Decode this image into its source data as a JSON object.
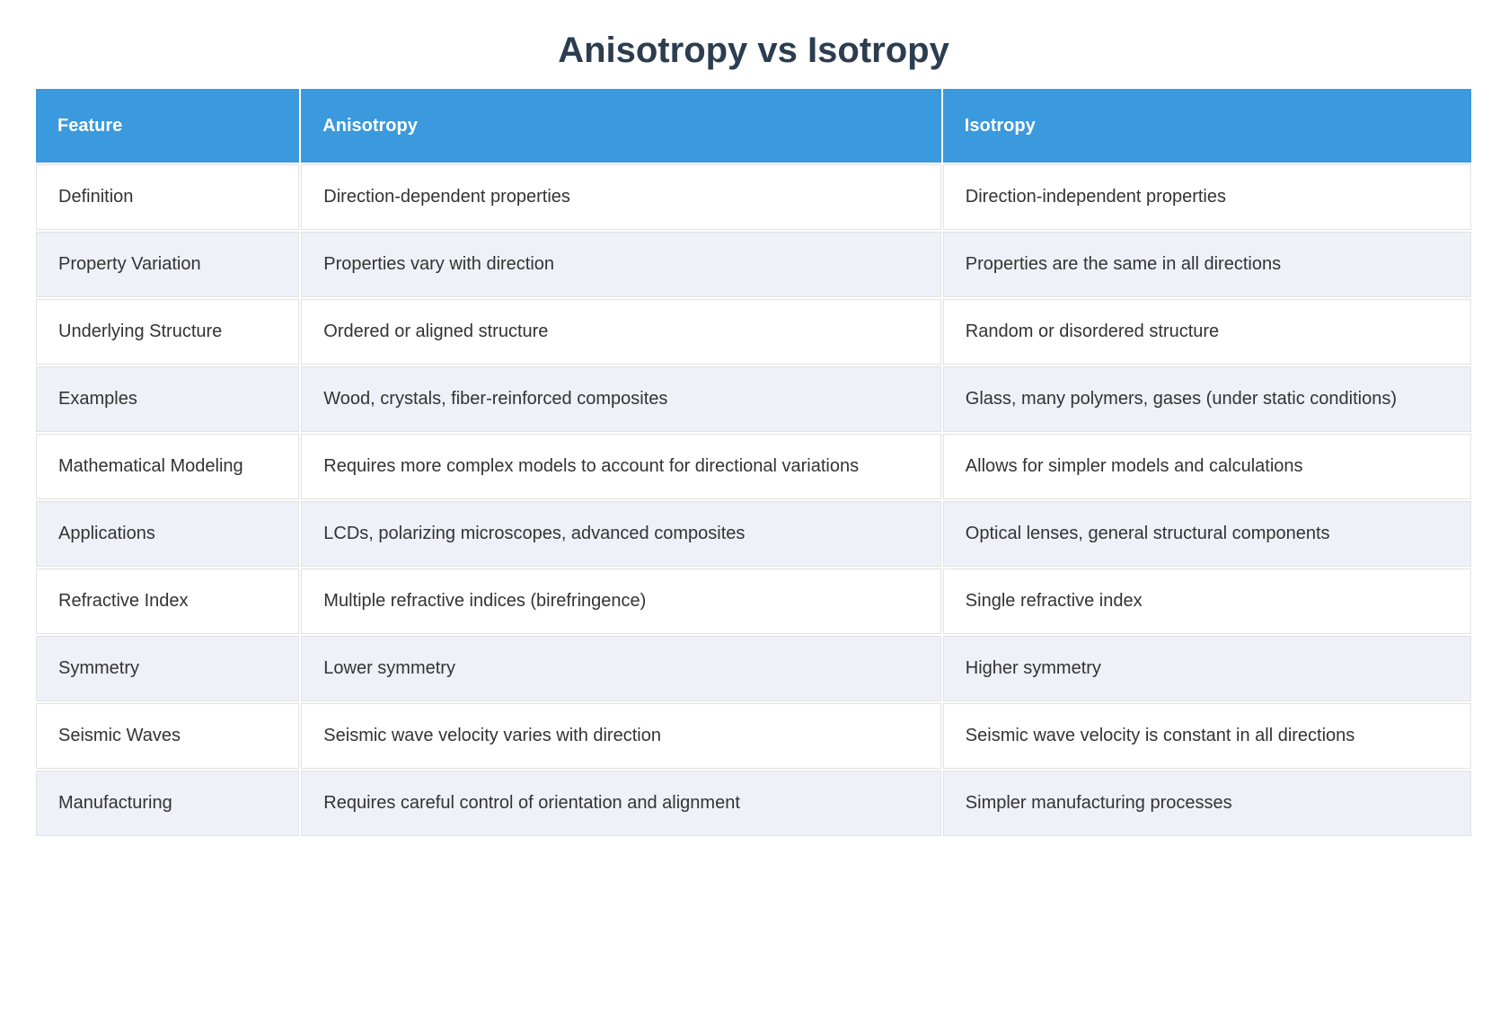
{
  "title": "Anisotropy vs Isotropy",
  "table": {
    "headers": [
      "Feature",
      "Anisotropy",
      "Isotropy"
    ],
    "rows": [
      {
        "feature": "Definition",
        "anisotropy": "Direction-dependent properties",
        "isotropy": "Direction-independent properties"
      },
      {
        "feature": "Property Variation",
        "anisotropy": "Properties vary with direction",
        "isotropy": "Properties are the same in all directions"
      },
      {
        "feature": "Underlying Structure",
        "anisotropy": "Ordered or aligned structure",
        "isotropy": "Random or disordered structure"
      },
      {
        "feature": "Examples",
        "anisotropy": "Wood, crystals, fiber-reinforced composites",
        "isotropy": "Glass, many polymers, gases (under static conditions)"
      },
      {
        "feature": "Mathematical Modeling",
        "anisotropy": "Requires more complex models to account for directional variations",
        "isotropy": "Allows for simpler models and calculations"
      },
      {
        "feature": "Applications",
        "anisotropy": "LCDs, polarizing microscopes, advanced composites",
        "isotropy": "Optical lenses, general structural components"
      },
      {
        "feature": "Refractive Index",
        "anisotropy": "Multiple refractive indices (birefringence)",
        "isotropy": "Single refractive index"
      },
      {
        "feature": "Symmetry",
        "anisotropy": "Lower symmetry",
        "isotropy": "Higher symmetry"
      },
      {
        "feature": "Seismic Waves",
        "anisotropy": "Seismic wave velocity varies with direction",
        "isotropy": "Seismic wave velocity is constant in all directions"
      },
      {
        "feature": "Manufacturing",
        "anisotropy": "Requires careful control of orientation and alignment",
        "isotropy": "Simpler manufacturing processes"
      }
    ]
  },
  "colors": {
    "header_bg": "#3b99dd",
    "header_text": "#ffffff",
    "row_bg": "#ffffff",
    "row_alt_bg": "#eef1f7",
    "border": "#e2e2e2",
    "body_text": "#333333",
    "title": "#2c3d50",
    "page_bg": "#ffffff"
  }
}
